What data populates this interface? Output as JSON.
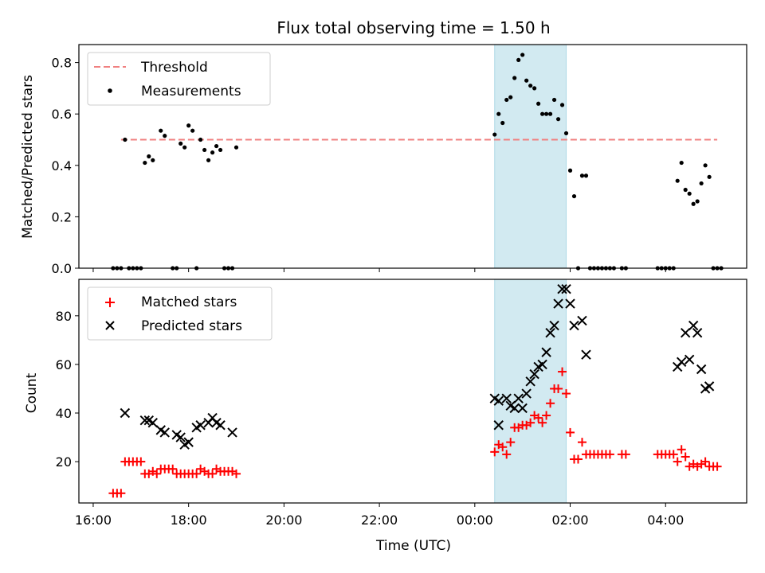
{
  "figure": {
    "title": "Flux total observing time = 1.50 h"
  },
  "colors": {
    "threshold": "#f08080",
    "measurement": "#000000",
    "matched": "#ff0000",
    "predicted": "#000000",
    "span_fill": "#add8e6"
  },
  "chart_data": [
    {
      "type": "scatter",
      "title": "Flux total observing time = 1.50 h",
      "ylabel": "Matched/Predicted stars",
      "xlim_hours": [
        15.7,
        29.7
      ],
      "ylim": [
        0,
        0.87
      ],
      "x_ticks": [
        {
          "h": 16,
          "label": "16:00"
        },
        {
          "h": 18,
          "label": "18:00"
        },
        {
          "h": 20,
          "label": "20:00"
        },
        {
          "h": 22,
          "label": "22:00"
        },
        {
          "h": 24,
          "label": "00:00"
        },
        {
          "h": 26,
          "label": "02:00"
        },
        {
          "h": 28,
          "label": "04:00"
        }
      ],
      "y_ticks": [
        {
          "v": 0.0,
          "label": "0.0"
        },
        {
          "v": 0.2,
          "label": "0.2"
        },
        {
          "v": 0.4,
          "label": "0.4"
        },
        {
          "v": 0.6,
          "label": "0.6"
        },
        {
          "v": 0.8,
          "label": "0.8"
        }
      ],
      "highlight_span": {
        "start": "00:25",
        "end": "01:55"
      },
      "legend": {
        "position": "upper-left",
        "entries": [
          "Threshold",
          "Measurements"
        ]
      },
      "threshold": {
        "name": "Threshold",
        "value": 0.5,
        "x_start": "16:35",
        "x_end": "05:05"
      },
      "measurements": {
        "name": "Measurements",
        "points": [
          [
            "16:25",
            0
          ],
          [
            "16:30",
            0
          ],
          [
            "16:35",
            0
          ],
          [
            "16:40",
            0.5
          ],
          [
            "16:45",
            0
          ],
          [
            "16:50",
            0
          ],
          [
            "16:55",
            0
          ],
          [
            "17:00",
            0
          ],
          [
            "17:05",
            0.41
          ],
          [
            "17:10",
            0.435
          ],
          [
            "17:15",
            0.42
          ],
          [
            "17:25",
            0.535
          ],
          [
            "17:30",
            0.515
          ],
          [
            "17:40",
            0
          ],
          [
            "17:45",
            0
          ],
          [
            "17:50",
            0.485
          ],
          [
            "17:55",
            0.47
          ],
          [
            "18:00",
            0.555
          ],
          [
            "18:05",
            0.535
          ],
          [
            "18:10",
            0
          ],
          [
            "18:15",
            0.5
          ],
          [
            "18:20",
            0.46
          ],
          [
            "18:25",
            0.42
          ],
          [
            "18:30",
            0.45
          ],
          [
            "18:35",
            0.475
          ],
          [
            "18:40",
            0.46
          ],
          [
            "18:45",
            0
          ],
          [
            "18:50",
            0
          ],
          [
            "18:55",
            0
          ],
          [
            "19:00",
            0.47
          ],
          [
            "00:25",
            0.52
          ],
          [
            "00:30",
            0.6
          ],
          [
            "00:35",
            0.565
          ],
          [
            "00:40",
            0.655
          ],
          [
            "00:45",
            0.665
          ],
          [
            "00:50",
            0.74
          ],
          [
            "00:55",
            0.81
          ],
          [
            "01:00",
            0.83
          ],
          [
            "01:05",
            0.73
          ],
          [
            "01:10",
            0.71
          ],
          [
            "01:15",
            0.7
          ],
          [
            "01:20",
            0.64
          ],
          [
            "01:25",
            0.6
          ],
          [
            "01:30",
            0.6
          ],
          [
            "01:35",
            0.6
          ],
          [
            "01:40",
            0.655
          ],
          [
            "01:45",
            0.58
          ],
          [
            "01:50",
            0.635
          ],
          [
            "01:55",
            0.525
          ],
          [
            "02:00",
            0.38
          ],
          [
            "02:05",
            0.28
          ],
          [
            "02:10",
            0
          ],
          [
            "02:15",
            0.36
          ],
          [
            "02:20",
            0.36
          ],
          [
            "02:25",
            0
          ],
          [
            "02:30",
            0
          ],
          [
            "02:35",
            0
          ],
          [
            "02:40",
            0
          ],
          [
            "02:45",
            0
          ],
          [
            "02:50",
            0
          ],
          [
            "02:55",
            0
          ],
          [
            "03:05",
            0
          ],
          [
            "03:10",
            0
          ],
          [
            "03:50",
            0
          ],
          [
            "03:55",
            0
          ],
          [
            "04:00",
            0
          ],
          [
            "04:05",
            0
          ],
          [
            "04:10",
            0
          ],
          [
            "04:15",
            0.34
          ],
          [
            "04:20",
            0.41
          ],
          [
            "04:25",
            0.305
          ],
          [
            "04:30",
            0.29
          ],
          [
            "04:35",
            0.25
          ],
          [
            "04:40",
            0.26
          ],
          [
            "04:45",
            0.33
          ],
          [
            "04:50",
            0.4
          ],
          [
            "04:55",
            0.355
          ],
          [
            "05:00",
            0
          ],
          [
            "05:05",
            0
          ],
          [
            "05:10",
            0
          ]
        ]
      }
    },
    {
      "type": "scatter",
      "xlabel": "Time (UTC)",
      "ylabel": "Count",
      "xlim_hours": [
        15.7,
        29.7
      ],
      "ylim": [
        3,
        95
      ],
      "y_ticks": [
        {
          "v": 20,
          "label": "20"
        },
        {
          "v": 40,
          "label": "40"
        },
        {
          "v": 60,
          "label": "60"
        },
        {
          "v": 80,
          "label": "80"
        }
      ],
      "highlight_span": {
        "start": "00:25",
        "end": "01:55"
      },
      "legend": {
        "position": "upper-left",
        "entries": [
          "Matched stars",
          "Predicted stars"
        ]
      },
      "series": [
        {
          "name": "Matched stars",
          "marker": "plus",
          "points": [
            [
              "16:25",
              7
            ],
            [
              "16:30",
              7
            ],
            [
              "16:35",
              7
            ],
            [
              "16:40",
              20
            ],
            [
              "16:45",
              20
            ],
            [
              "16:50",
              20
            ],
            [
              "16:55",
              20
            ],
            [
              "17:00",
              20
            ],
            [
              "17:05",
              15
            ],
            [
              "17:10",
              15
            ],
            [
              "17:15",
              16
            ],
            [
              "17:20",
              15
            ],
            [
              "17:25",
              17
            ],
            [
              "17:30",
              17
            ],
            [
              "17:35",
              17
            ],
            [
              "17:40",
              17
            ],
            [
              "17:45",
              15
            ],
            [
              "17:50",
              15
            ],
            [
              "17:55",
              15
            ],
            [
              "18:00",
              15
            ],
            [
              "18:05",
              15
            ],
            [
              "18:10",
              15
            ],
            [
              "18:15",
              17
            ],
            [
              "18:20",
              16
            ],
            [
              "18:25",
              15
            ],
            [
              "18:30",
              15
            ],
            [
              "18:35",
              17
            ],
            [
              "18:40",
              16
            ],
            [
              "18:45",
              16
            ],
            [
              "18:50",
              16
            ],
            [
              "18:55",
              16
            ],
            [
              "19:00",
              15
            ],
            [
              "00:25",
              24
            ],
            [
              "00:30",
              27
            ],
            [
              "00:35",
              26
            ],
            [
              "00:40",
              23
            ],
            [
              "00:45",
              28
            ],
            [
              "00:50",
              34
            ],
            [
              "00:55",
              34
            ],
            [
              "01:00",
              35
            ],
            [
              "01:05",
              35
            ],
            [
              "01:10",
              36
            ],
            [
              "01:15",
              39
            ],
            [
              "01:20",
              38
            ],
            [
              "01:25",
              36
            ],
            [
              "01:30",
              39
            ],
            [
              "01:35",
              44
            ],
            [
              "01:40",
              50
            ],
            [
              "01:45",
              50
            ],
            [
              "01:50",
              57
            ],
            [
              "01:55",
              48
            ],
            [
              "02:00",
              32
            ],
            [
              "02:05",
              21
            ],
            [
              "02:10",
              21
            ],
            [
              "02:15",
              28
            ],
            [
              "02:20",
              23
            ],
            [
              "02:25",
              23
            ],
            [
              "02:30",
              23
            ],
            [
              "02:35",
              23
            ],
            [
              "02:40",
              23
            ],
            [
              "02:45",
              23
            ],
            [
              "02:50",
              23
            ],
            [
              "03:05",
              23
            ],
            [
              "03:10",
              23
            ],
            [
              "03:50",
              23
            ],
            [
              "03:55",
              23
            ],
            [
              "04:00",
              23
            ],
            [
              "04:05",
              23
            ],
            [
              "04:10",
              23
            ],
            [
              "04:15",
              20
            ],
            [
              "04:20",
              25
            ],
            [
              "04:25",
              22
            ],
            [
              "04:30",
              18
            ],
            [
              "04:35",
              19
            ],
            [
              "04:40",
              18
            ],
            [
              "04:45",
              19
            ],
            [
              "04:50",
              20
            ],
            [
              "04:55",
              18
            ],
            [
              "05:00",
              18
            ],
            [
              "05:05",
              18
            ]
          ]
        },
        {
          "name": "Predicted stars",
          "marker": "x",
          "points": [
            [
              "16:40",
              40
            ],
            [
              "17:05",
              37
            ],
            [
              "17:10",
              37
            ],
            [
              "17:15",
              36
            ],
            [
              "17:25",
              33
            ],
            [
              "17:30",
              32
            ],
            [
              "17:45",
              31
            ],
            [
              "17:50",
              30
            ],
            [
              "17:55",
              27
            ],
            [
              "18:00",
              28
            ],
            [
              "18:10",
              34
            ],
            [
              "18:15",
              35
            ],
            [
              "18:25",
              36
            ],
            [
              "18:30",
              38
            ],
            [
              "18:35",
              36
            ],
            [
              "18:40",
              35
            ],
            [
              "18:55",
              32
            ],
            [
              "00:25",
              46
            ],
            [
              "00:30",
              45
            ],
            [
              "00:40",
              46
            ],
            [
              "00:45",
              43
            ],
            [
              "00:50",
              42
            ],
            [
              "00:55",
              46
            ],
            [
              "01:00",
              42
            ],
            [
              "01:05",
              48
            ],
            [
              "01:10",
              53
            ],
            [
              "01:15",
              56
            ],
            [
              "01:20",
              59
            ],
            [
              "01:25",
              60
            ],
            [
              "01:30",
              65
            ],
            [
              "01:35",
              73
            ],
            [
              "01:40",
              76
            ],
            [
              "01:45",
              85
            ],
            [
              "01:50",
              91
            ],
            [
              "01:55",
              91
            ],
            [
              "02:00",
              85
            ],
            [
              "02:05",
              76
            ],
            [
              "02:15",
              78
            ],
            [
              "02:20",
              64
            ],
            [
              "00:30",
              35
            ],
            [
              "04:15",
              59
            ],
            [
              "04:20",
              61
            ],
            [
              "04:25",
              73
            ],
            [
              "04:30",
              62
            ],
            [
              "04:35",
              76
            ],
            [
              "04:40",
              73
            ],
            [
              "04:45",
              58
            ],
            [
              "04:50",
              50
            ],
            [
              "04:55",
              51
            ]
          ]
        }
      ]
    }
  ]
}
